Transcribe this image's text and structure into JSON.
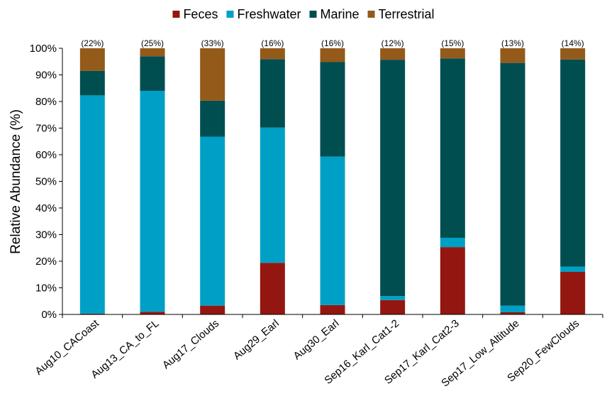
{
  "chart_data": {
    "type": "bar",
    "stacked": true,
    "ylabel": "Relative Abundance (%)",
    "ylim": [
      0,
      100
    ],
    "yticks": [
      "0%",
      "10%",
      "20%",
      "30%",
      "40%",
      "50%",
      "60%",
      "70%",
      "80%",
      "90%",
      "100%"
    ],
    "categories": [
      "Aug10_CACoast",
      "Aug13_CA_to_FL",
      "Aug17_Clouds",
      "Aug29_Earl",
      "Aug30_Earl",
      "Sep16_Karl_Cat1-2",
      "Sep17_Karl_Cat2-3",
      "Sep17_Low_Altitude",
      "Sep20_FewClouds"
    ],
    "bar_annotations": [
      "(22%)",
      "(25%)",
      "(33%)",
      "(16%)",
      "(16%)",
      "(12%)",
      "(15%)",
      "(13%)",
      "(14%)"
    ],
    "legend_position": "top",
    "series": [
      {
        "name": "Feces",
        "color": "#931610",
        "values": [
          0.3,
          1.0,
          3.3,
          19.4,
          3.5,
          5.4,
          25.3,
          0.8,
          16.0
        ]
      },
      {
        "name": "Freshwater",
        "color": "#00A0C6",
        "values": [
          82.0,
          83.0,
          63.5,
          50.8,
          55.8,
          1.5,
          3.5,
          2.5,
          2.0
        ]
      },
      {
        "name": "Marine",
        "color": "#004E50",
        "values": [
          9.2,
          13.0,
          13.5,
          25.7,
          35.5,
          88.8,
          67.4,
          91.2,
          77.8
        ]
      },
      {
        "name": "Terrestrial",
        "color": "#935A1A",
        "values": [
          8.5,
          3.0,
          19.7,
          4.1,
          5.2,
          4.3,
          3.8,
          5.5,
          4.2
        ]
      }
    ]
  }
}
